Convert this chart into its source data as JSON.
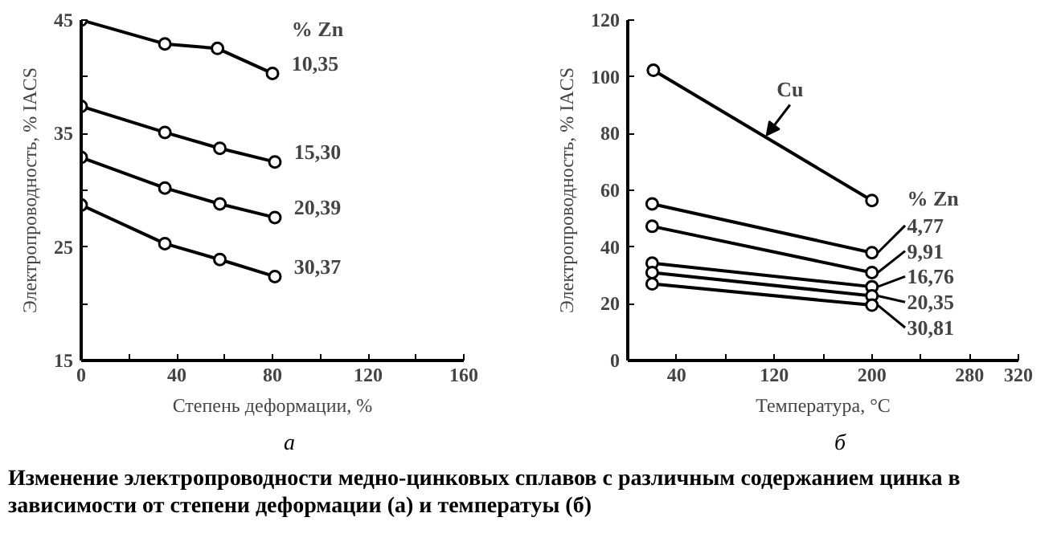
{
  "chart_data": [
    {
      "type": "line",
      "xlabel": "Степень деформации, %",
      "ylabel": "Электропроводность, % IACS",
      "legend_title": "% Zn",
      "xlim": [
        0,
        160
      ],
      "ylim": [
        15,
        45
      ],
      "xticks": [
        0,
        {
          "value": 20,
          "label": null
        },
        40,
        {
          "value": 60,
          "label": null
        },
        80,
        {
          "value": 100,
          "label": null
        },
        120,
        {
          "value": 140,
          "label": null
        },
        160
      ],
      "yticks": [
        15,
        {
          "value": 20,
          "label": null
        },
        25,
        {
          "value": 30,
          "label": null
        },
        35,
        {
          "value": 40,
          "label": null
        },
        45
      ],
      "marker": "circle",
      "grid": false,
      "legend": "right",
      "series": [
        {
          "name": "10,35",
          "color": "#000000",
          "x": [
            0,
            35,
            57,
            80
          ],
          "values": [
            45,
            42.9,
            42.5,
            40.3
          ]
        },
        {
          "name": "15,30",
          "color": "#000000",
          "x": [
            0,
            35,
            58,
            81
          ],
          "values": [
            37.4,
            35.1,
            33.7,
            32.5
          ]
        },
        {
          "name": "20,39",
          "color": "#000000",
          "x": [
            0,
            35,
            58,
            81
          ],
          "values": [
            32.9,
            30.2,
            28.8,
            27.6
          ]
        },
        {
          "name": "30,37",
          "color": "#000000",
          "x": [
            0,
            35,
            58,
            81
          ],
          "values": [
            28.7,
            25.3,
            23.9,
            22.4
          ]
        }
      ],
      "annotations": [
        "а",
        "Изменение электропроводности медно-цинковых сплавов с различным содержанием цинка в зависимости от степени деформации (а) и температуы (б)"
      ]
    },
    {
      "type": "line",
      "xlabel": "Температура, °C",
      "ylabel": "Электропроводность, % IACS",
      "legend_title": "% Zn",
      "xlim": [
        0,
        320
      ],
      "ylim": [
        0,
        120
      ],
      "xticks": [
        40,
        {
          "value": 80,
          "label": null
        },
        120,
        {
          "value": 160,
          "label": null
        },
        200,
        {
          "value": 240,
          "label": null
        },
        280,
        320
      ],
      "yticks": [
        0,
        20,
        40,
        60,
        80,
        100,
        120
      ],
      "marker": "circle",
      "grid": false,
      "legend": "right",
      "series": [
        {
          "name": "Cu",
          "color": "#000000",
          "x": [
            21,
            200
          ],
          "values": [
            102.3,
            56.4
          ]
        },
        {
          "name": "4,77",
          "color": "#000000",
          "x": [
            20,
            200
          ],
          "values": [
            55.2,
            38
          ]
        },
        {
          "name": "9,91",
          "color": "#000000",
          "x": [
            20,
            200
          ],
          "values": [
            47.3,
            31
          ]
        },
        {
          "name": "16,76",
          "color": "#000000",
          "x": [
            20,
            200
          ],
          "values": [
            34.3,
            26
          ]
        },
        {
          "name": "20,35",
          "color": "#000000",
          "x": [
            20,
            200
          ],
          "values": [
            31,
            22.8
          ]
        },
        {
          "name": "30,81",
          "color": "#000000",
          "x": [
            20,
            200
          ],
          "values": [
            27,
            19.5
          ]
        }
      ],
      "annotations": [
        "б"
      ]
    }
  ]
}
